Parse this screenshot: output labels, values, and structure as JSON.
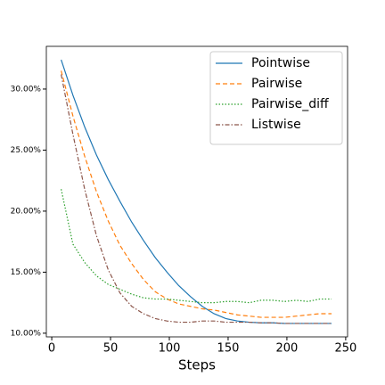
{
  "chart_data": {
    "type": "line",
    "x_label": "Steps",
    "x": [
      8,
      18,
      28,
      38,
      48,
      58,
      68,
      78,
      88,
      98,
      108,
      118,
      128,
      138,
      148,
      158,
      168,
      178,
      188,
      198,
      208,
      218,
      228,
      238
    ],
    "series": [
      {
        "name": "Pointwise",
        "color": "#1f77b4",
        "linestyle": "solid",
        "values": [
          32.4,
          29.5,
          26.9,
          24.6,
          22.6,
          20.8,
          19.1,
          17.6,
          16.2,
          15.0,
          13.9,
          13.0,
          12.2,
          11.6,
          11.2,
          11.0,
          10.9,
          10.85,
          10.85,
          10.8,
          10.8,
          10.8,
          10.8,
          10.8
        ]
      },
      {
        "name": "Pairwise",
        "color": "#ff7f0e",
        "linestyle": "dashed",
        "values": [
          31.5,
          27.8,
          24.5,
          21.6,
          19.2,
          17.2,
          15.7,
          14.4,
          13.4,
          12.8,
          12.4,
          12.2,
          12.0,
          11.9,
          11.7,
          11.5,
          11.4,
          11.3,
          11.3,
          11.3,
          11.4,
          11.5,
          11.6,
          11.6
        ]
      },
      {
        "name": "Pairwise_diff",
        "color": "#2ca02c",
        "linestyle": "dotted",
        "values": [
          21.8,
          17.3,
          15.8,
          14.7,
          14.0,
          13.6,
          13.2,
          12.9,
          12.8,
          12.8,
          12.7,
          12.6,
          12.5,
          12.5,
          12.6,
          12.6,
          12.5,
          12.7,
          12.7,
          12.6,
          12.7,
          12.6,
          12.8,
          12.8
        ]
      },
      {
        "name": "Listwise",
        "color": "#8c564b",
        "linestyle": "dashdot",
        "values": [
          31.2,
          26.3,
          21.8,
          18.0,
          15.2,
          13.3,
          12.2,
          11.6,
          11.2,
          11.0,
          10.9,
          10.9,
          11.0,
          11.0,
          10.9,
          10.9,
          10.9,
          10.85,
          10.85,
          10.8,
          10.8,
          10.8,
          10.8,
          10.8
        ]
      }
    ],
    "xlim": [
      -4.6,
      251.6
    ],
    "xticks": [
      0,
      50,
      100,
      150,
      200,
      250
    ],
    "ylim": [
      9.7,
      33.5
    ],
    "yticks": [
      {
        "value": 10,
        "label": "10.00%"
      },
      {
        "value": 15,
        "label": "15.00%"
      },
      {
        "value": 20,
        "label": "20.00%"
      },
      {
        "value": 25,
        "label": "25.00%"
      },
      {
        "value": 30,
        "label": "30.00%"
      }
    ],
    "legend": "upper right",
    "grid": false
  }
}
